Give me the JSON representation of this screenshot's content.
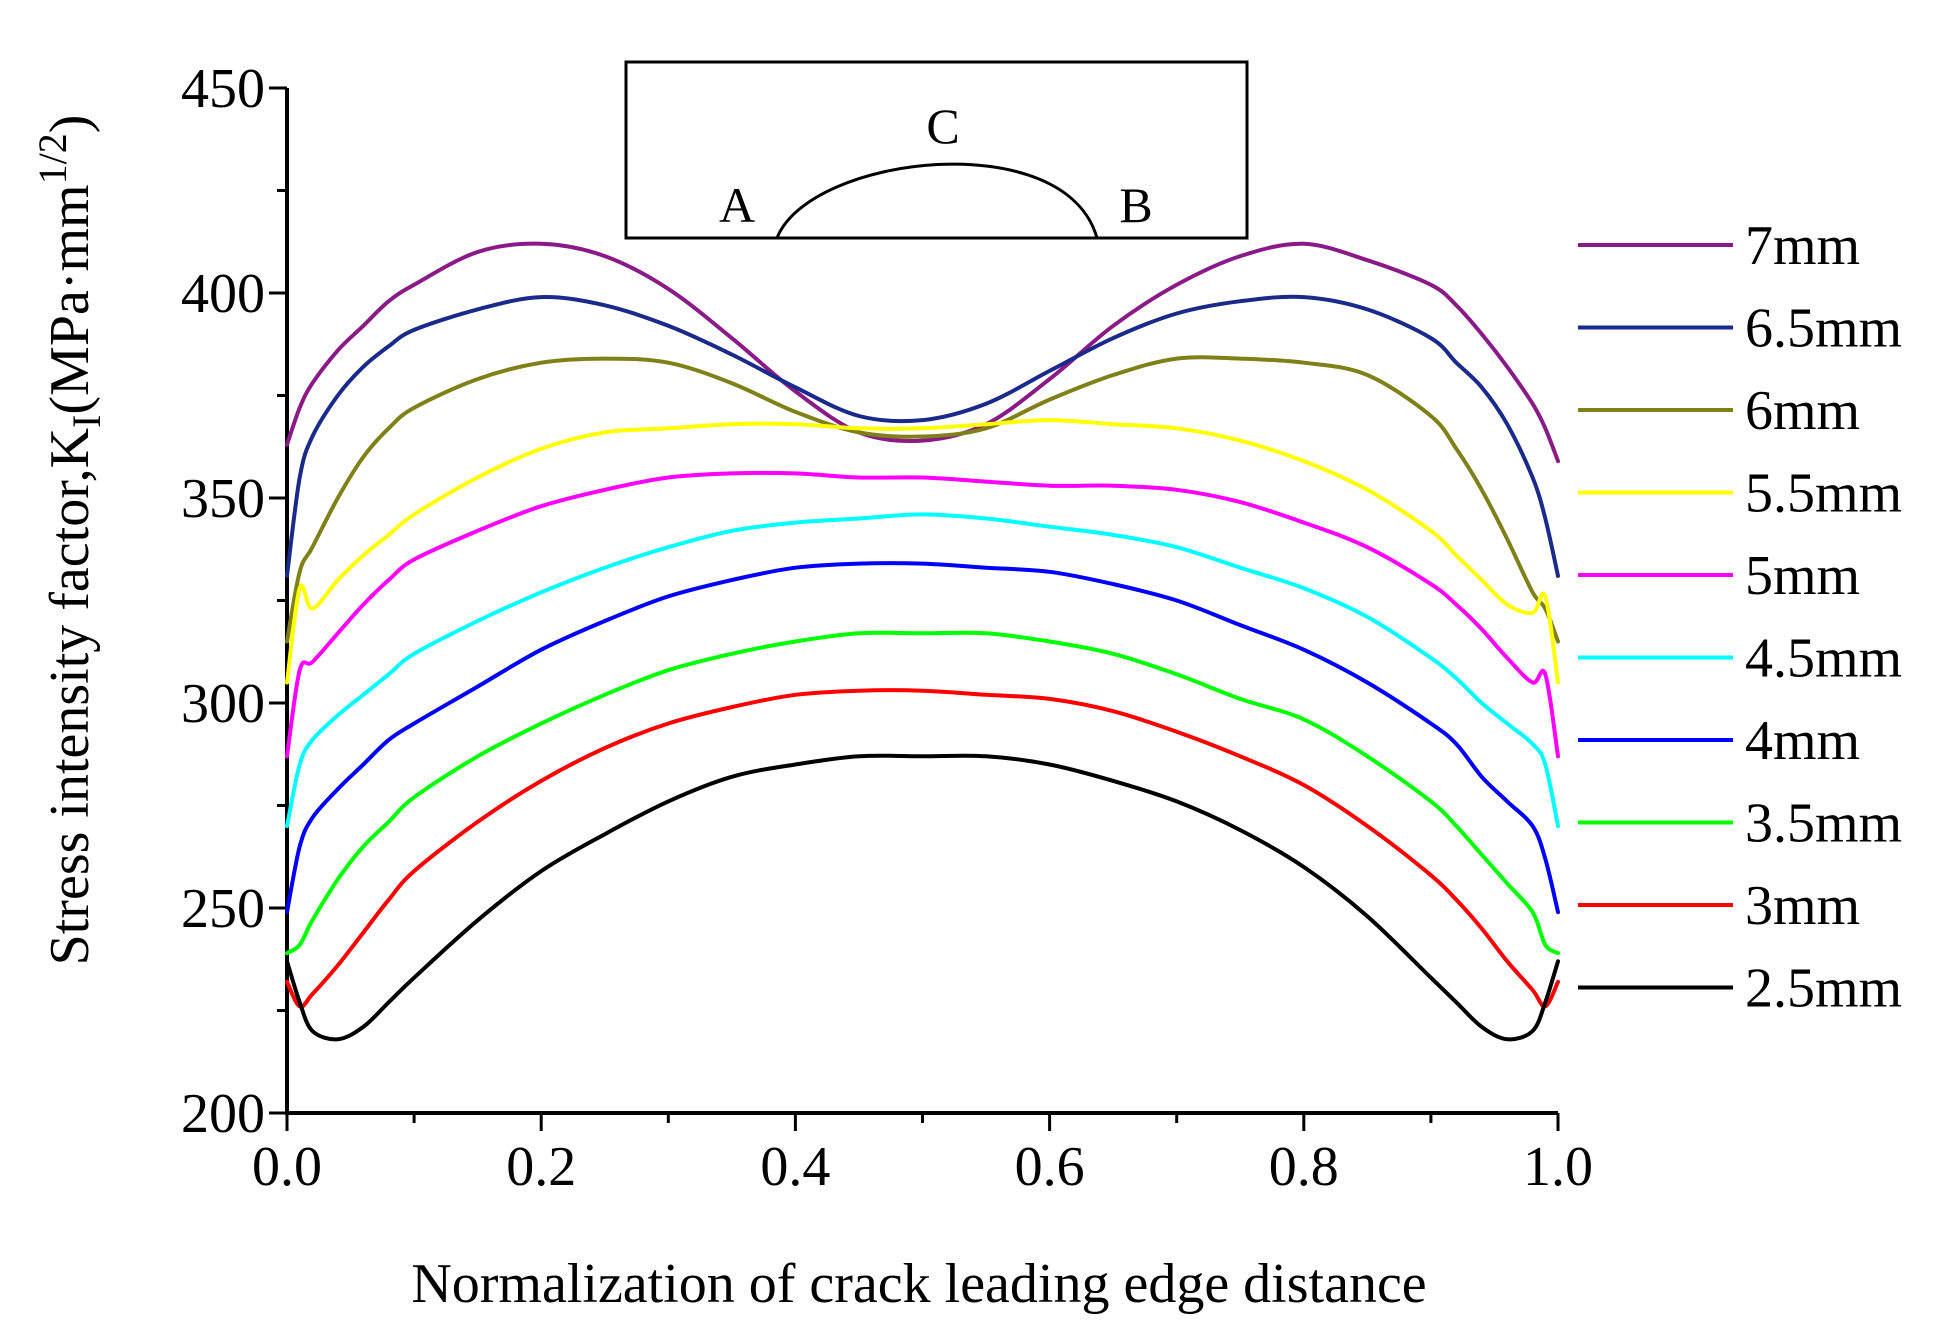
{
  "chart_data": {
    "type": "line",
    "title": "",
    "xlabel": "Normalization of crack leading edge distance",
    "ylabel": {
      "main": "Stress intensity factor,K",
      "subscript": "I",
      "unit_open": "(MPa·mm",
      "superscript": "1/2",
      "unit_close": ")"
    },
    "xlim": [
      0.0,
      1.0
    ],
    "ylim": [
      200,
      450
    ],
    "xticks": [
      0.0,
      0.2,
      0.4,
      0.6,
      0.8,
      1.0
    ],
    "xtick_labels": [
      "0.0",
      "0.2",
      "0.4",
      "0.6",
      "0.8",
      "1.0"
    ],
    "yticks": [
      200,
      250,
      300,
      350,
      400,
      450
    ],
    "ytick_labels": [
      "200",
      "250",
      "300",
      "350",
      "400",
      "450"
    ],
    "legend_position": "right",
    "inset": {
      "labels": [
        "A",
        "C",
        "B"
      ]
    },
    "x": [
      0.0,
      0.01,
      0.02,
      0.04,
      0.06,
      0.08,
      0.1,
      0.15,
      0.2,
      0.25,
      0.3,
      0.35,
      0.4,
      0.45,
      0.5,
      0.55,
      0.6,
      0.65,
      0.7,
      0.75,
      0.8,
      0.85,
      0.9,
      0.92,
      0.94,
      0.96,
      0.98,
      0.99,
      1.0
    ],
    "series": [
      {
        "name": "7mm",
        "color": "#8B1A89",
        "values": [
          363,
          372,
          378,
          386,
          392,
          398,
          402,
          410,
          412,
          409,
          401,
          389,
          376,
          366,
          364,
          368,
          379,
          392,
          402,
          409,
          412,
          408,
          402,
          397,
          390,
          382,
          373,
          367,
          359
        ]
      },
      {
        "name": "6.5mm",
        "color": "#1A2A8B",
        "values": [
          331,
          355,
          365,
          375,
          382,
          387,
          391,
          396,
          399,
          397,
          392,
          385,
          377,
          370,
          369,
          373,
          381,
          389,
          395,
          398,
          399,
          396,
          389,
          383,
          377,
          368,
          355,
          345,
          331
        ]
      },
      {
        "name": "6mm",
        "color": "#808018",
        "values": [
          315,
          332,
          338,
          350,
          360,
          367,
          372,
          379,
          383,
          384,
          383,
          378,
          371,
          366,
          365,
          367,
          374,
          380,
          384,
          384,
          383,
          380,
          370,
          362,
          352,
          340,
          327,
          323,
          315
        ]
      },
      {
        "name": "5.5mm",
        "color": "#FFFF00",
        "values": [
          305,
          328,
          323,
          330,
          336,
          341,
          346,
          355,
          362,
          366,
          367,
          368,
          368,
          367,
          367,
          368,
          369,
          368,
          367,
          364,
          359,
          352,
          342,
          336,
          330,
          324,
          322,
          326,
          305
        ]
      },
      {
        "name": "5mm",
        "color": "#FF00FF",
        "values": [
          287,
          308,
          310,
          317,
          324,
          330,
          335,
          342,
          348,
          352,
          355,
          356,
          356,
          355,
          355,
          354,
          353,
          353,
          352,
          349,
          344,
          338,
          329,
          324,
          318,
          311,
          305,
          307,
          287
        ]
      },
      {
        "name": "4.5mm",
        "color": "#00FFFF",
        "values": [
          270,
          285,
          291,
          297,
          302,
          307,
          312,
          320,
          327,
          333,
          338,
          342,
          344,
          345,
          346,
          345,
          343,
          341,
          338,
          333,
          328,
          321,
          311,
          306,
          300,
          295,
          290,
          285,
          270
        ]
      },
      {
        "name": "4mm",
        "color": "#0000FF",
        "values": [
          249,
          265,
          272,
          279,
          285,
          291,
          295,
          304,
          313,
          320,
          326,
          330,
          333,
          334,
          334,
          333,
          332,
          329,
          325,
          319,
          313,
          305,
          295,
          290,
          282,
          276,
          270,
          262,
          249
        ]
      },
      {
        "name": "3.5mm",
        "color": "#00FF00",
        "values": [
          239,
          241,
          247,
          257,
          265,
          271,
          277,
          287,
          295,
          302,
          308,
          312,
          315,
          317,
          317,
          317,
          315,
          312,
          307,
          301,
          296,
          287,
          276,
          270,
          263,
          256,
          249,
          241,
          239
        ]
      },
      {
        "name": "3mm",
        "color": "#FF0000",
        "values": [
          232,
          226,
          229,
          236,
          244,
          252,
          259,
          271,
          281,
          289,
          295,
          299,
          302,
          303,
          303,
          302,
          301,
          298,
          293,
          287,
          280,
          270,
          258,
          252,
          245,
          237,
          230,
          226,
          232
        ]
      },
      {
        "name": "2.5mm",
        "color": "#000000",
        "values": [
          237,
          227,
          220,
          218,
          221,
          227,
          233,
          247,
          259,
          268,
          276,
          282,
          285,
          287,
          287,
          287,
          285,
          281,
          276,
          269,
          260,
          248,
          233,
          227,
          221,
          218,
          220,
          227,
          237
        ]
      }
    ]
  }
}
